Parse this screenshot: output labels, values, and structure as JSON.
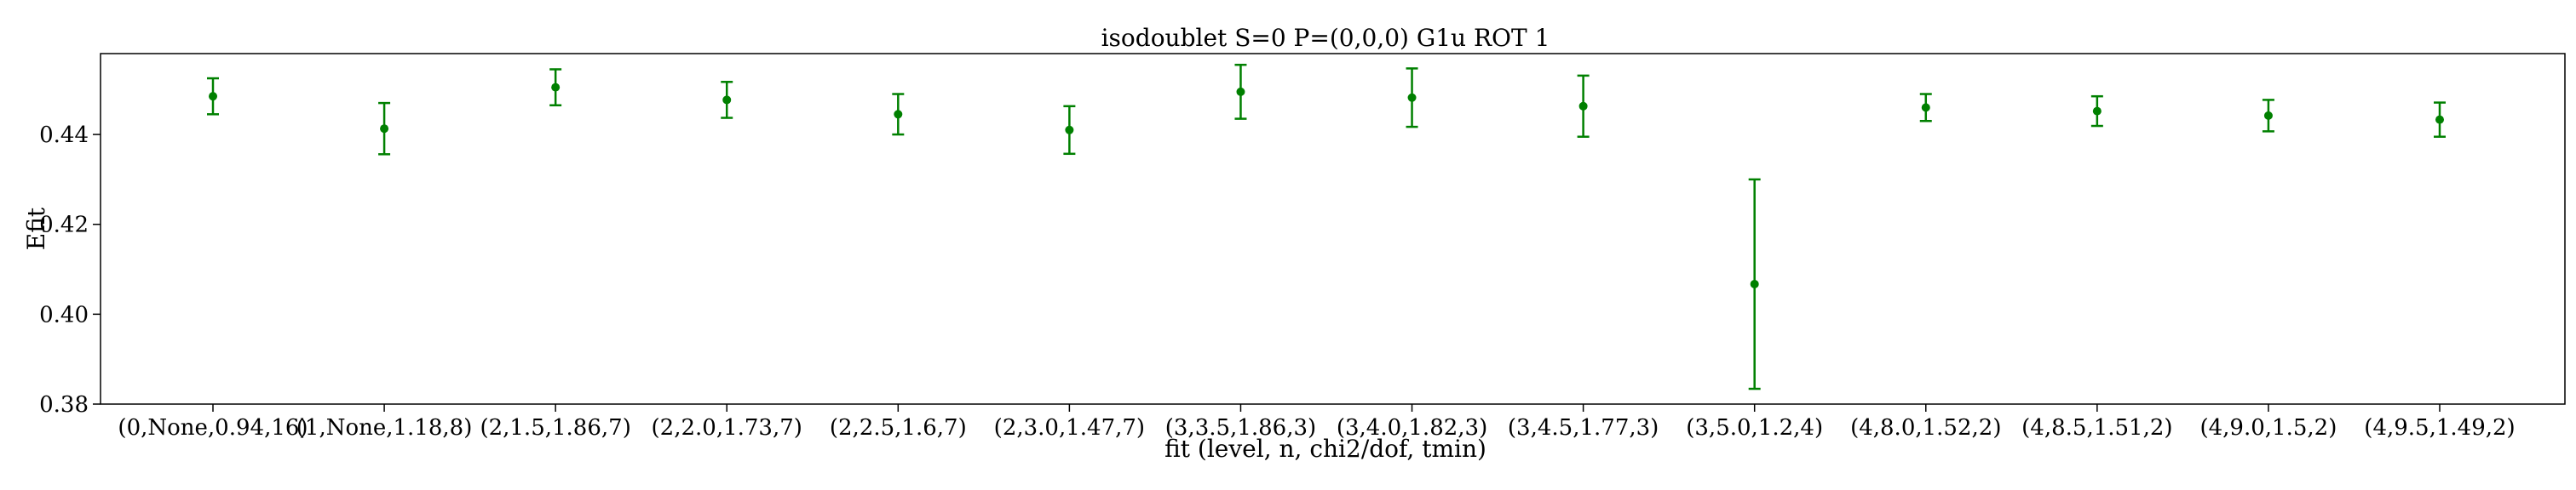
{
  "chart_data": {
    "type": "scatter",
    "title": "isodoublet S=0 P=(0,0,0) G1u ROT 1",
    "xlabel": "fit (level, n, chi2/dof, tmin)",
    "ylabel": "Efit",
    "ylim": [
      0.38,
      0.458
    ],
    "yticks": [
      "0.38",
      "0.40",
      "0.42",
      "0.44"
    ],
    "grid": false,
    "series_color": "#008000",
    "categories": [
      "(0,None,0.94,16)",
      "(1,None,1.18,8)",
      "(2,1.5,1.86,7)",
      "(2,2.0,1.73,7)",
      "(2,2.5,1.6,7)",
      "(2,3.0,1.47,7)",
      "(3,3.5,1.86,3)",
      "(3,4.0,1.82,3)",
      "(3,4.5,1.77,3)",
      "(3,5.0,1.2,4)",
      "(4,8.0,1.52,2)",
      "(4,8.5,1.51,2)",
      "(4,9.0,1.5,2)",
      "(4,9.5,1.49,2)"
    ],
    "values": [
      0.4485,
      0.4413,
      0.4505,
      0.4477,
      0.4445,
      0.441,
      0.4495,
      0.4482,
      0.4463,
      0.4067,
      0.446,
      0.4452,
      0.4442,
      0.4433
    ],
    "errors": [
      0.004,
      0.0057,
      0.004,
      0.004,
      0.0045,
      0.0053,
      0.006,
      0.0065,
      0.0068,
      0.0233,
      0.003,
      0.0033,
      0.0035,
      0.0038
    ]
  }
}
